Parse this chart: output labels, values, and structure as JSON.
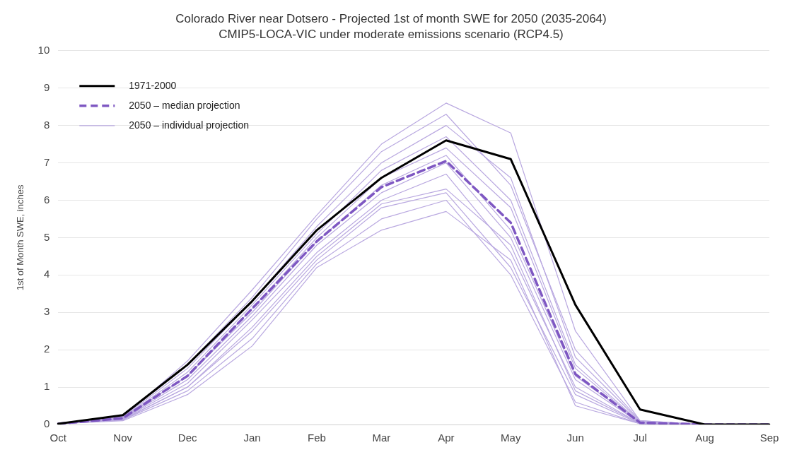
{
  "chart_data": {
    "type": "line",
    "title": "Colorado River near Dotsero - Projected 1st of month SWE for 2050 (2035-2064)",
    "subtitle": "CMIP5-LOCA-VIC under moderate emissions scenario (RCP4.5)",
    "ylabel": "1st of Month SWE, inches",
    "categories": [
      "Oct",
      "Nov",
      "Dec",
      "Jan",
      "Feb",
      "Mar",
      "Apr",
      "May",
      "Jun",
      "Jul",
      "Aug",
      "Sep"
    ],
    "ylim": [
      0,
      10
    ],
    "yticks": [
      0,
      1,
      2,
      3,
      4,
      5,
      6,
      7,
      8,
      9,
      10
    ],
    "grid": "y",
    "legend": "top left",
    "marker": "none",
    "series": [
      {
        "name": "1971-2000",
        "color": "#000000",
        "line_style": "solid",
        "values": [
          0.02,
          0.25,
          1.6,
          3.3,
          5.2,
          6.6,
          7.6,
          7.1,
          3.2,
          0.4,
          0,
          0
        ]
      },
      {
        "name": "2050 – median projection",
        "color": "#7e57c2",
        "line_style": "dashed",
        "values": [
          0.02,
          0.17,
          1.3,
          3.1,
          4.9,
          6.35,
          7.05,
          5.4,
          1.35,
          0.05,
          0,
          0
        ]
      },
      {
        "name": "2050 – individual projection",
        "color": "#b9a8e0",
        "line_style": "solid",
        "values": [
          0.02,
          0.2,
          1.7,
          3.6,
          5.6,
          7.5,
          8.6,
          7.8,
          2.5,
          0.1,
          0,
          0
        ]
      },
      {
        "color": "#b9a8e0",
        "line_style": "solid",
        "values": [
          0.02,
          0.22,
          1.6,
          3.4,
          5.5,
          7.3,
          8.3,
          6.4,
          2.0,
          0.1,
          0,
          0
        ]
      },
      {
        "color": "#b9a8e0",
        "line_style": "solid",
        "values": [
          0.02,
          0.2,
          1.5,
          3.3,
          5.3,
          7.0,
          8.0,
          6.6,
          1.8,
          0.08,
          0,
          0
        ]
      },
      {
        "color": "#b9a8e0",
        "line_style": "solid",
        "values": [
          0.02,
          0.18,
          1.4,
          3.2,
          5.1,
          6.8,
          7.7,
          6.0,
          1.6,
          0.06,
          0,
          0
        ]
      },
      {
        "color": "#b9a8e0",
        "line_style": "solid",
        "values": [
          0.02,
          0.17,
          1.3,
          3.1,
          5.0,
          6.6,
          7.4,
          5.8,
          1.5,
          0.05,
          0,
          0
        ]
      },
      {
        "color": "#b9a8e0",
        "line_style": "solid",
        "values": [
          0.02,
          0.16,
          1.3,
          3.0,
          4.9,
          6.4,
          7.2,
          5.2,
          1.3,
          0.05,
          0,
          0
        ]
      },
      {
        "color": "#b9a8e0",
        "line_style": "solid",
        "values": [
          0.02,
          0.15,
          1.2,
          2.9,
          4.8,
          6.2,
          7.0,
          5.0,
          1.2,
          0.04,
          0,
          0
        ]
      },
      {
        "color": "#b9a8e0",
        "line_style": "solid",
        "values": [
          0.02,
          0.15,
          1.1,
          2.8,
          4.6,
          6.0,
          6.7,
          4.6,
          1.0,
          0.03,
          0,
          0
        ]
      },
      {
        "color": "#b9a8e0",
        "line_style": "solid",
        "values": [
          0.02,
          0.14,
          1.0,
          2.6,
          4.5,
          5.9,
          6.3,
          4.8,
          0.9,
          0.03,
          0,
          0
        ]
      },
      {
        "color": "#b9a8e0",
        "line_style": "solid",
        "values": [
          0.02,
          0.13,
          1.0,
          2.5,
          4.4,
          5.8,
          6.2,
          4.2,
          0.8,
          0.02,
          0,
          0
        ]
      },
      {
        "color": "#b9a8e0",
        "line_style": "solid",
        "values": [
          0.02,
          0.12,
          0.9,
          2.3,
          4.3,
          5.5,
          6.0,
          4.0,
          0.6,
          0.02,
          0,
          0
        ]
      },
      {
        "color": "#b9a8e0",
        "line_style": "solid",
        "values": [
          0.02,
          0.1,
          0.8,
          2.1,
          4.2,
          5.2,
          5.7,
          4.4,
          0.5,
          0.02,
          0,
          0
        ]
      }
    ]
  }
}
